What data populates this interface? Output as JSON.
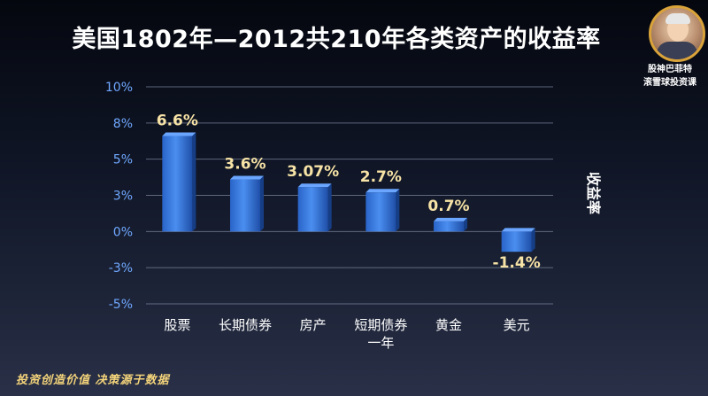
{
  "header": {
    "title": "美国1802年—2012共210年各类资产的收益率",
    "brand_line1": "股神巴菲特",
    "brand_line2": "滚雪球投资课"
  },
  "footer": {
    "slogan": "投资创造价值  决策源于数据"
  },
  "colors": {
    "bar": "#4a8ef0",
    "tick": "#6fa8ff",
    "data_label": "#f7e3a6",
    "grid": "#7f8aa0"
  },
  "chart_data": {
    "type": "bar",
    "title": "美国1802年—2012共210年各类资产的收益率",
    "ylabel": "收益率",
    "xlabel": "",
    "ylim": [
      -5,
      10
    ],
    "yticks": [
      {
        "value": 10,
        "label": "10%"
      },
      {
        "value": 7.5,
        "label": "8%"
      },
      {
        "value": 5,
        "label": "5%"
      },
      {
        "value": 2.5,
        "label": "3%"
      },
      {
        "value": 0,
        "label": "0%"
      },
      {
        "value": -2.5,
        "label": "-3%"
      },
      {
        "value": -5,
        "label": "-5%"
      }
    ],
    "grid": true,
    "categories": [
      "股票",
      "长期债券",
      "房产",
      "短期债券一年",
      "黄金",
      "美元"
    ],
    "category_lines": [
      [
        "股票"
      ],
      [
        "长期债券"
      ],
      [
        "房产"
      ],
      [
        "短期债券",
        "一年"
      ],
      [
        "黄金"
      ],
      [
        "美元"
      ]
    ],
    "values": [
      6.6,
      3.6,
      3.07,
      2.7,
      0.7,
      -1.4
    ],
    "data_labels": [
      "6.6%",
      "3.6%",
      "3.07%",
      "2.7%",
      "0.7%",
      "-1.4%"
    ]
  }
}
